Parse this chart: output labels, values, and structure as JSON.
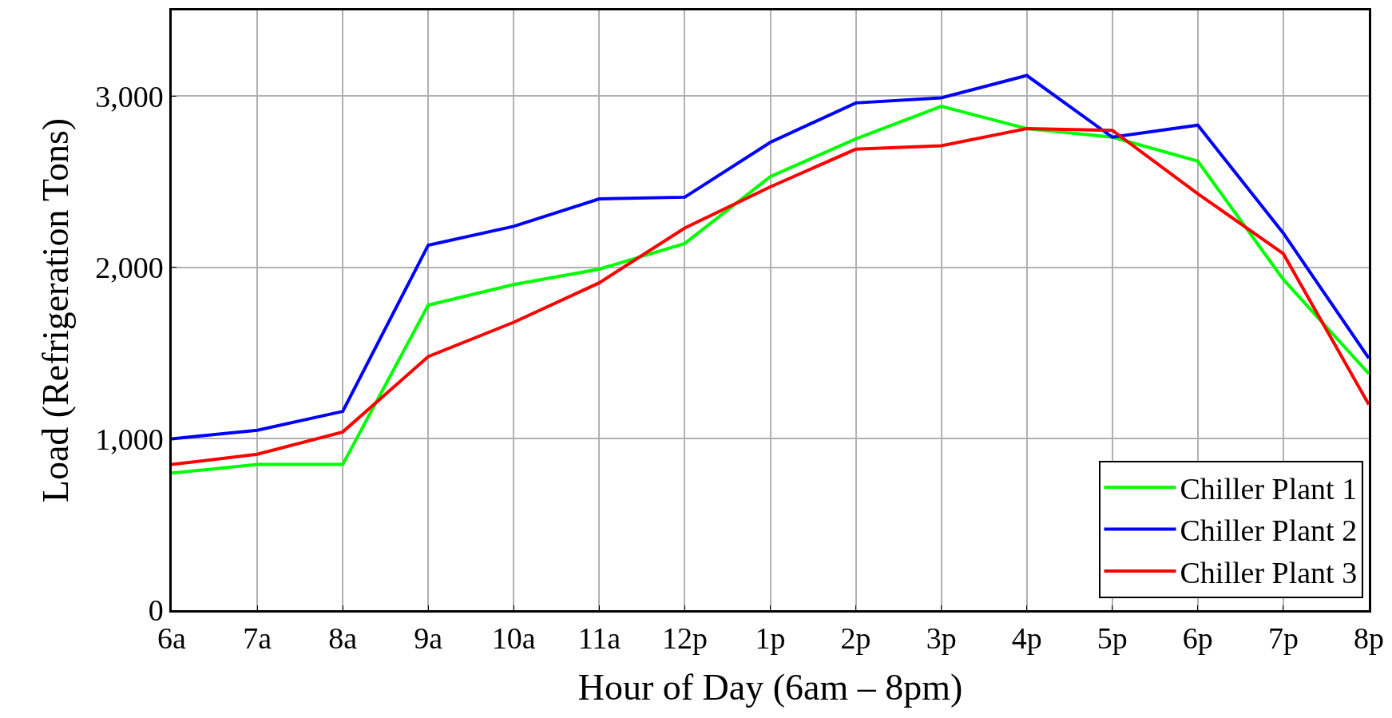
{
  "chart_data": {
    "type": "line",
    "xlabel": "Hour of Day (6am – 8pm)",
    "ylabel": "Load (Refrigeration Tons)",
    "categories": [
      "6a",
      "7a",
      "8a",
      "9a",
      "10a",
      "11a",
      "12p",
      "1p",
      "2p",
      "3p",
      "4p",
      "5p",
      "6p",
      "7p",
      "8p"
    ],
    "series": [
      {
        "name": "Chiller Plant 1",
        "color": "#00ff00",
        "values": [
          800,
          850,
          850,
          1780,
          1900,
          1990,
          2140,
          2530,
          2750,
          2940,
          2810,
          2760,
          2620,
          1930,
          1380
        ]
      },
      {
        "name": "Chiller Plant 2",
        "color": "#0000ff",
        "values": [
          1000,
          1050,
          1160,
          2130,
          2240,
          2400,
          2410,
          2730,
          2960,
          2990,
          3120,
          2760,
          2830,
          2200,
          1470
        ]
      },
      {
        "name": "Chiller Plant 3",
        "color": "#ff0000",
        "values": [
          850,
          910,
          1040,
          1480,
          1680,
          1910,
          2230,
          2470,
          2690,
          2710,
          2810,
          2800,
          2430,
          2080,
          1200
        ]
      }
    ],
    "ylim": [
      0,
      3500
    ],
    "yticks": [
      0,
      {
        "value": 1000,
        "label": "1,000"
      },
      {
        "value": 2000,
        "label": "2,000"
      },
      {
        "value": 3000,
        "label": "3,000"
      }
    ],
    "grid": true,
    "legend": "bottom right",
    "marker": "none",
    "line_style": "solid"
  }
}
